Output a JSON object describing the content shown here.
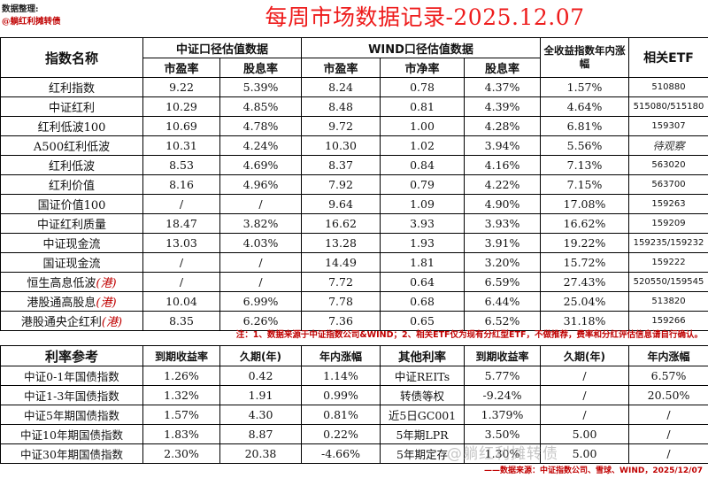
{
  "header": {
    "credit_line1": "数据整理:",
    "credit_line2": "@躺红利摊转债",
    "title": "每周市场数据记录-2025.12.07"
  },
  "main": {
    "col_index_name": "指数名称",
    "group_csi": "中证口径估值数据",
    "group_wind": "WIND口径估值数据",
    "col_total_return": "全收益指数年内涨幅",
    "col_etf": "相关ETF",
    "sub_pe": "市盈率",
    "sub_dy": "股息率",
    "sub_pe2": "市盈率",
    "sub_pb": "市净率",
    "sub_dy2": "股息率",
    "rows": [
      {
        "name": "红利指数",
        "hk": "",
        "csi_pe": "9.22",
        "csi_dy": "5.39%",
        "w_pe": "8.24",
        "w_pb": "0.78",
        "w_dy": "4.37%",
        "ytd": "1.57%",
        "etf": "510880"
      },
      {
        "name": "中证红利",
        "hk": "",
        "csi_pe": "10.29",
        "csi_dy": "4.85%",
        "w_pe": "8.48",
        "w_pb": "0.81",
        "w_dy": "4.39%",
        "ytd": "4.64%",
        "etf": "515080/515180"
      },
      {
        "name": "红利低波100",
        "hk": "",
        "csi_pe": "10.69",
        "csi_dy": "4.78%",
        "w_pe": "9.72",
        "w_pb": "1.00",
        "w_dy": "4.28%",
        "ytd": "6.81%",
        "etf": "159307"
      },
      {
        "name": "A500红利低波",
        "hk": "",
        "csi_pe": "10.31",
        "csi_dy": "4.24%",
        "w_pe": "10.30",
        "w_pb": "1.02",
        "w_dy": "3.94%",
        "ytd": "5.56%",
        "etf": "待观察"
      },
      {
        "name": "红利低波",
        "hk": "",
        "csi_pe": "8.53",
        "csi_dy": "4.69%",
        "w_pe": "8.37",
        "w_pb": "0.84",
        "w_dy": "4.16%",
        "ytd": "7.13%",
        "etf": "563020"
      },
      {
        "name": "红利价值",
        "hk": "",
        "csi_pe": "8.16",
        "csi_dy": "4.96%",
        "w_pe": "7.92",
        "w_pb": "0.79",
        "w_dy": "4.22%",
        "ytd": "7.15%",
        "etf": "563700"
      },
      {
        "name": "国证价值100",
        "hk": "",
        "csi_pe": "/",
        "csi_dy": "/",
        "w_pe": "9.64",
        "w_pb": "1.09",
        "w_dy": "4.90%",
        "ytd": "17.08%",
        "etf": "159263"
      },
      {
        "name": "中证红利质量",
        "hk": "",
        "csi_pe": "18.47",
        "csi_dy": "3.82%",
        "w_pe": "16.62",
        "w_pb": "3.93",
        "w_dy": "3.93%",
        "ytd": "16.62%",
        "etf": "159209"
      },
      {
        "name": "中证现金流",
        "hk": "",
        "csi_pe": "13.03",
        "csi_dy": "4.03%",
        "w_pe": "13.28",
        "w_pb": "1.93",
        "w_dy": "3.91%",
        "ytd": "19.22%",
        "etf": "159235/159232"
      },
      {
        "name": "国证现金流",
        "hk": "",
        "csi_pe": "/",
        "csi_dy": "/",
        "w_pe": "14.49",
        "w_pb": "1.81",
        "w_dy": "3.20%",
        "ytd": "15.72%",
        "etf": "159222"
      },
      {
        "name": "恒生高息低波",
        "hk": "(港)",
        "csi_pe": "/",
        "csi_dy": "/",
        "w_pe": "7.72",
        "w_pb": "0.64",
        "w_dy": "6.59%",
        "ytd": "27.43%",
        "etf": "520550/159545"
      },
      {
        "name": "港股通高股息",
        "hk": "(港)",
        "csi_pe": "10.04",
        "csi_dy": "6.99%",
        "w_pe": "7.78",
        "w_pb": "0.68",
        "w_dy": "6.44%",
        "ytd": "25.04%",
        "etf": "513820"
      },
      {
        "name": "港股通央企红利",
        "hk": "(港)",
        "csi_pe": "8.35",
        "csi_dy": "6.26%",
        "w_pe": "7.36",
        "w_pb": "0.65",
        "w_dy": "6.52%",
        "ytd": "31.18%",
        "etf": "159266"
      }
    ]
  },
  "note": "注：1、数据来源于中证指数公司&WIND；2、相关ETF仅为现有分红型ETF，不做推荐，费率和分红评估信息请自行确认。",
  "rates": {
    "title": "利率参考",
    "h_ytm": "到期收益率",
    "h_dur": "久期(年)",
    "h_ytd": "年内涨幅",
    "h_other": "其他利率",
    "h_ytm2": "到期收益率",
    "h_dur2": "久期(年)",
    "h_ytd2": "年内涨幅",
    "rows": [
      {
        "name": "中证0-1年国债指数",
        "ytm": "1.26%",
        "dur": "0.42",
        "ytd": "1.14%",
        "oname": "中证REITs",
        "oytm": "5.77%",
        "odur": "/",
        "oytd": "6.57%"
      },
      {
        "name": "中证1-3年国债指数",
        "ytm": "1.32%",
        "dur": "1.91",
        "ytd": "0.99%",
        "oname": "转债等权",
        "oytm": "-9.24%",
        "odur": "/",
        "oytd": "20.50%"
      },
      {
        "name": "中证5年期国债指数",
        "ytm": "1.57%",
        "dur": "4.30",
        "ytd": "0.81%",
        "oname": "近5日GC001",
        "oytm": "1.379%",
        "odur": "/",
        "oytd": "/"
      },
      {
        "name": "中证10年期国债指数",
        "ytm": "1.83%",
        "dur": "8.87",
        "ytd": "0.22%",
        "oname": "5年期LPR",
        "oytm": "3.50%",
        "odur": "5.00",
        "oytd": "/"
      },
      {
        "name": "中证30年期国债指数",
        "ytm": "2.30%",
        "dur": "20.38",
        "ytd": "-4.66%",
        "oname": "5年期定存",
        "oytm": "1.30%",
        "odur": "5.00",
        "oytd": "/"
      }
    ]
  },
  "footer": "——数据来源：中证指数公司、雪球、WIND，2025/12/07",
  "watermark": "@躺红利摊转债"
}
